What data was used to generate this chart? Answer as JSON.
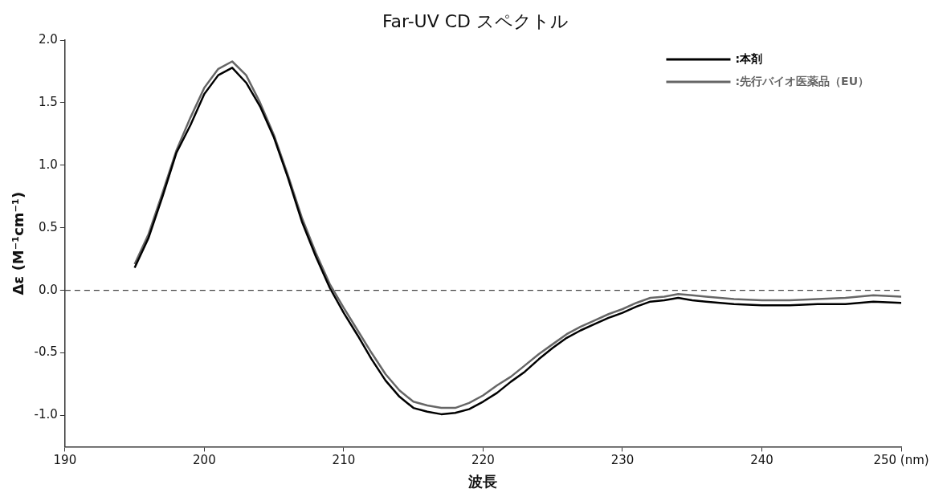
{
  "chart_data": {
    "type": "line",
    "title": "Far-UV CD スペクトル",
    "xlabel": "波長",
    "ylabel": "Δε (M⁻¹cm⁻¹)",
    "x": [
      195,
      196,
      197,
      198,
      199,
      200,
      201,
      202,
      203,
      204,
      205,
      206,
      207,
      208,
      209,
      210,
      211,
      212,
      213,
      214,
      215,
      216,
      217,
      218,
      219,
      220,
      221,
      222,
      223,
      224,
      225,
      226,
      227,
      228,
      229,
      230,
      231,
      232,
      233,
      234,
      235,
      236,
      238,
      240,
      242,
      244,
      246,
      248,
      250
    ],
    "series": [
      {
        "name": ":本剤",
        "color": "#000000",
        "values": [
          0.18,
          0.42,
          0.75,
          1.1,
          1.32,
          1.57,
          1.72,
          1.78,
          1.66,
          1.47,
          1.22,
          0.9,
          0.55,
          0.27,
          0.02,
          -0.18,
          -0.36,
          -0.55,
          -0.72,
          -0.85,
          -0.94,
          -0.97,
          -0.99,
          -0.98,
          -0.95,
          -0.89,
          -0.82,
          -0.73,
          -0.65,
          -0.55,
          -0.46,
          -0.38,
          -0.32,
          -0.27,
          -0.22,
          -0.18,
          -0.13,
          -0.09,
          -0.08,
          -0.06,
          -0.08,
          -0.09,
          -0.11,
          -0.12,
          -0.12,
          -0.11,
          -0.11,
          -0.09,
          -0.1
        ]
      },
      {
        "name": ":先行バイオ医薬品（EU）",
        "color": "#666666",
        "values": [
          0.21,
          0.45,
          0.78,
          1.12,
          1.38,
          1.62,
          1.77,
          1.83,
          1.72,
          1.5,
          1.24,
          0.92,
          0.58,
          0.3,
          0.05,
          -0.14,
          -0.32,
          -0.5,
          -0.67,
          -0.8,
          -0.89,
          -0.92,
          -0.94,
          -0.94,
          -0.9,
          -0.84,
          -0.76,
          -0.69,
          -0.6,
          -0.51,
          -0.43,
          -0.35,
          -0.29,
          -0.24,
          -0.19,
          -0.15,
          -0.1,
          -0.06,
          -0.05,
          -0.03,
          -0.04,
          -0.05,
          -0.07,
          -0.08,
          -0.08,
          -0.07,
          -0.06,
          -0.04,
          -0.05
        ]
      }
    ],
    "xlim": [
      190,
      250
    ],
    "xticks": [
      190,
      200,
      210,
      220,
      230,
      240,
      {
        "value": 250,
        "label": "250 (nm)"
      }
    ],
    "ylim": [
      -1.25,
      2.0
    ],
    "yticks": [
      {
        "value": -1.0,
        "label": "-1.0"
      },
      {
        "value": -0.5,
        "label": "-0.5"
      },
      {
        "value": 0,
        "label": "0.0"
      },
      {
        "value": 0.5,
        "label": "0.5"
      },
      {
        "value": 1.0,
        "label": "1.0"
      },
      {
        "value": 1.5,
        "label": "1.5"
      },
      {
        "value": 2.0,
        "label": "2.0"
      }
    ],
    "ref_lines": [
      {
        "axis": "y",
        "value": 0,
        "color": "#444444",
        "line_style": "dashed"
      }
    ],
    "grid": false,
    "legend": "top right",
    "marker": "none",
    "line_style": "solid"
  }
}
